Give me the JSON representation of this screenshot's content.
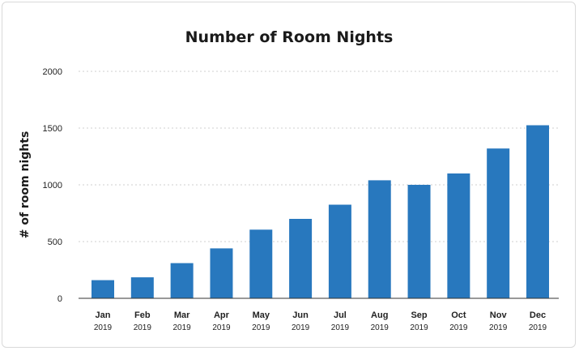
{
  "chart_data": {
    "type": "bar",
    "title": "Number of Room Nights",
    "xlabel": "",
    "ylabel": "# of room nights",
    "ylim": [
      0,
      2000
    ],
    "yticks": [
      0,
      500,
      1000,
      1500,
      2000
    ],
    "grid": true,
    "categories": [
      {
        "month": "Jan",
        "year": "2019"
      },
      {
        "month": "Feb",
        "year": "2019"
      },
      {
        "month": "Mar",
        "year": "2019"
      },
      {
        "month": "Apr",
        "year": "2019"
      },
      {
        "month": "May",
        "year": "2019"
      },
      {
        "month": "Jun",
        "year": "2019"
      },
      {
        "month": "Jul",
        "year": "2019"
      },
      {
        "month": "Aug",
        "year": "2019"
      },
      {
        "month": "Sep",
        "year": "2019"
      },
      {
        "month": "Oct",
        "year": "2019"
      },
      {
        "month": "Nov",
        "year": "2019"
      },
      {
        "month": "Dec",
        "year": "2019"
      }
    ],
    "values": [
      160,
      185,
      310,
      440,
      605,
      700,
      825,
      1040,
      1000,
      1100,
      1320,
      1525
    ],
    "bar_color": "#2878be"
  }
}
